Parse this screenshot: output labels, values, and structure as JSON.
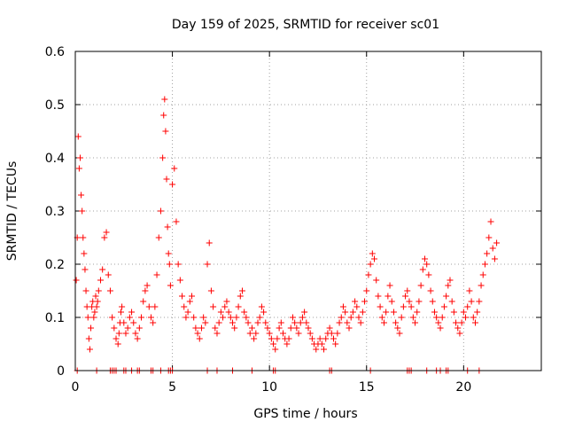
{
  "chart_data": {
    "type": "scatter",
    "title": "Day 159 of 2025, SRMTID for receiver sc01",
    "xlabel": "GPS time / hours",
    "ylabel": "SRMTID / TECUs",
    "xlim": [
      0,
      24
    ],
    "ylim": [
      0,
      0.6
    ],
    "xticks": [
      0,
      5,
      10,
      15,
      20
    ],
    "yticks": [
      0,
      0.1,
      0.2,
      0.3,
      0.4,
      0.5,
      0.6
    ],
    "grid": true,
    "marker": "+",
    "color": "#ff0000",
    "series": [
      {
        "name": "SRMTID",
        "x": [
          0.05,
          0.1,
          0.15,
          0.2,
          0.25,
          0.3,
          0.35,
          0.4,
          0.45,
          0.5,
          0.55,
          0.6,
          0.65,
          0.7,
          0.75,
          0.8,
          0.85,
          0.9,
          0.95,
          1.0,
          1.05,
          1.1,
          1.15,
          1.2,
          1.3,
          1.4,
          1.5,
          1.6,
          1.7,
          1.8,
          1.9,
          2.0,
          2.1,
          2.2,
          2.25,
          2.3,
          2.35,
          2.4,
          2.5,
          2.6,
          2.7,
          2.8,
          2.9,
          3.0,
          3.1,
          3.2,
          3.3,
          3.4,
          3.5,
          3.6,
          3.7,
          3.8,
          3.9,
          4.0,
          4.1,
          4.2,
          4.3,
          4.4,
          4.5,
          4.55,
          4.6,
          4.65,
          4.7,
          4.75,
          4.8,
          4.85,
          4.9,
          5.0,
          5.1,
          5.2,
          5.3,
          5.4,
          5.5,
          5.6,
          5.7,
          5.8,
          5.9,
          6.0,
          6.1,
          6.2,
          6.3,
          6.4,
          6.5,
          6.6,
          6.7,
          6.8,
          6.9,
          7.0,
          7.1,
          7.2,
          7.3,
          7.4,
          7.5,
          7.6,
          7.7,
          7.8,
          7.9,
          8.0,
          8.1,
          8.2,
          8.3,
          8.4,
          8.5,
          8.6,
          8.7,
          8.8,
          8.9,
          9.0,
          9.1,
          9.2,
          9.3,
          9.4,
          9.5,
          9.6,
          9.7,
          9.8,
          9.9,
          10.0,
          10.1,
          10.2,
          10.3,
          10.4,
          10.5,
          10.6,
          10.7,
          10.8,
          10.9,
          11.0,
          11.1,
          11.2,
          11.3,
          11.4,
          11.5,
          11.6,
          11.7,
          11.8,
          11.9,
          12.0,
          12.1,
          12.2,
          12.3,
          12.4,
          12.5,
          12.6,
          12.7,
          12.8,
          12.9,
          13.0,
          13.1,
          13.2,
          13.3,
          13.4,
          13.5,
          13.6,
          13.7,
          13.8,
          13.9,
          14.0,
          14.1,
          14.2,
          14.3,
          14.4,
          14.5,
          14.6,
          14.7,
          14.8,
          14.9,
          15.0,
          15.1,
          15.2,
          15.3,
          15.4,
          15.5,
          15.6,
          15.7,
          15.8,
          15.9,
          16.0,
          16.1,
          16.2,
          16.3,
          16.4,
          16.5,
          16.6,
          16.7,
          16.8,
          16.9,
          17.0,
          17.1,
          17.2,
          17.3,
          17.4,
          17.5,
          17.6,
          17.7,
          17.8,
          17.9,
          18.0,
          18.1,
          18.2,
          18.3,
          18.4,
          18.5,
          18.6,
          18.7,
          18.8,
          18.9,
          19.0,
          19.1,
          19.2,
          19.3,
          19.4,
          19.5,
          19.6,
          19.7,
          19.8,
          19.9,
          20.0,
          20.1,
          20.2,
          20.3,
          20.4,
          20.5,
          20.6,
          20.7,
          20.8,
          20.9,
          21.0,
          21.1,
          21.2,
          21.3,
          21.4,
          21.5,
          21.6,
          21.7
        ],
        "y": [
          0.17,
          0.25,
          0.44,
          0.38,
          0.4,
          0.33,
          0.3,
          0.25,
          0.22,
          0.19,
          0.15,
          0.12,
          0.1,
          0.06,
          0.04,
          0.08,
          0.12,
          0.13,
          0.1,
          0.11,
          0.14,
          0.12,
          0.13,
          0.15,
          0.17,
          0.19,
          0.25,
          0.26,
          0.18,
          0.15,
          0.1,
          0.08,
          0.06,
          0.05,
          0.07,
          0.09,
          0.11,
          0.12,
          0.09,
          0.07,
          0.08,
          0.1,
          0.11,
          0.09,
          0.07,
          0.06,
          0.08,
          0.1,
          0.13,
          0.15,
          0.16,
          0.12,
          0.1,
          0.09,
          0.12,
          0.18,
          0.25,
          0.3,
          0.4,
          0.48,
          0.51,
          0.45,
          0.36,
          0.27,
          0.22,
          0.2,
          0.16,
          0.35,
          0.38,
          0.28,
          0.2,
          0.17,
          0.14,
          0.12,
          0.1,
          0.11,
          0.13,
          0.14,
          0.1,
          0.08,
          0.07,
          0.06,
          0.08,
          0.1,
          0.09,
          0.2,
          0.24,
          0.15,
          0.12,
          0.08,
          0.07,
          0.09,
          0.11,
          0.1,
          0.12,
          0.13,
          0.11,
          0.1,
          0.09,
          0.08,
          0.1,
          0.12,
          0.14,
          0.15,
          0.11,
          0.1,
          0.09,
          0.07,
          0.08,
          0.06,
          0.07,
          0.09,
          0.1,
          0.12,
          0.11,
          0.09,
          0.08,
          0.07,
          0.06,
          0.05,
          0.04,
          0.06,
          0.08,
          0.09,
          0.07,
          0.06,
          0.05,
          0.06,
          0.08,
          0.1,
          0.09,
          0.08,
          0.07,
          0.09,
          0.1,
          0.11,
          0.09,
          0.08,
          0.07,
          0.06,
          0.05,
          0.04,
          0.05,
          0.06,
          0.05,
          0.04,
          0.06,
          0.07,
          0.08,
          0.07,
          0.06,
          0.05,
          0.07,
          0.09,
          0.1,
          0.12,
          0.11,
          0.09,
          0.08,
          0.1,
          0.11,
          0.13,
          0.12,
          0.1,
          0.09,
          0.11,
          0.13,
          0.15,
          0.18,
          0.2,
          0.22,
          0.21,
          0.17,
          0.14,
          0.12,
          0.1,
          0.09,
          0.11,
          0.14,
          0.16,
          0.13,
          0.11,
          0.09,
          0.08,
          0.07,
          0.1,
          0.12,
          0.14,
          0.15,
          0.13,
          0.12,
          0.1,
          0.09,
          0.11,
          0.13,
          0.16,
          0.19,
          0.21,
          0.2,
          0.18,
          0.15,
          0.13,
          0.11,
          0.1,
          0.09,
          0.08,
          0.1,
          0.12,
          0.14,
          0.16,
          0.17,
          0.13,
          0.11,
          0.09,
          0.08,
          0.07,
          0.09,
          0.11,
          0.1,
          0.12,
          0.15,
          0.13,
          0.1,
          0.09,
          0.11,
          0.13,
          0.16,
          0.18,
          0.2,
          0.22,
          0.25,
          0.28,
          0.23,
          0.21,
          0.24
        ]
      }
    ],
    "zero_markers_x": [
      0.1,
      1.1,
      1.8,
      1.9,
      2.0,
      2.1,
      2.5,
      2.6,
      2.9,
      3.2,
      3.3,
      3.9,
      4.0,
      4.4,
      4.8,
      4.9,
      5.0,
      6.8,
      7.3,
      8.1,
      9.1,
      10.2,
      10.3,
      13.1,
      13.2,
      15.2,
      17.1,
      17.2,
      17.3,
      18.1,
      18.6,
      18.8,
      19.1,
      19.2,
      20.2,
      20.8
    ]
  }
}
